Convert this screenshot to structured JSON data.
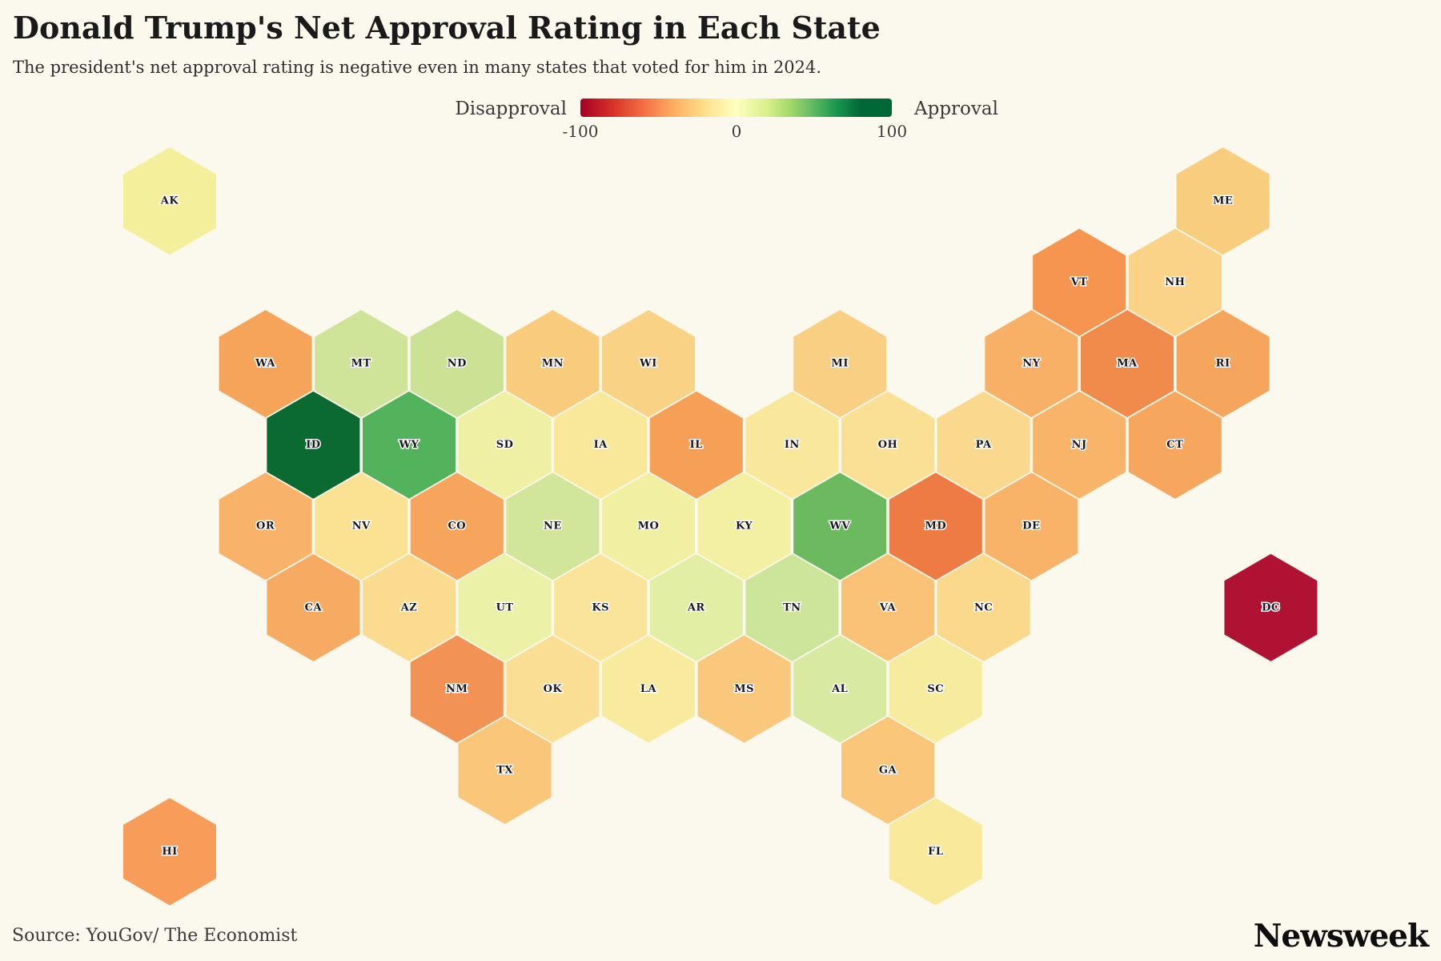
{
  "header": {
    "title": "Donald Trump's Net Approval Rating in Each State",
    "subtitle": "The president's net approval rating is negative even in many states that voted for him in 2024."
  },
  "legend": {
    "left_label": "Disapproval",
    "right_label": "Approval",
    "tick_min": "-100",
    "tick_mid": "0",
    "tick_max": "100",
    "gradient_stops": [
      "#a50026 0%",
      "#d73027 10%",
      "#f46d43 20%",
      "#fdae61 30%",
      "#fee08b 40%",
      "#ffffbf 50%",
      "#d9ef8b 60%",
      "#a6d96a 67%",
      "#66bd63 74%",
      "#1a9850 82%",
      "#006837 90%",
      "#006837 100%"
    ]
  },
  "footer": {
    "source": "Source: YouGov/ The Economist",
    "brand": "Newsweek"
  },
  "chart_data": {
    "type": "heatmap",
    "subtype": "us-state-hexbin-choropleth",
    "title": "Donald Trump's Net Approval Rating in Each State",
    "encoding": "net approval encoded by hexagon color on a -100 (disapproval, red) to +100 (approval, green) diverging scale; no numeric values printed on tiles",
    "color_scale": {
      "scheme": "red-yellow-green",
      "domain": [
        -100,
        100
      ],
      "min_label": "Disapproval",
      "max_label": "Approval",
      "background": "#FBF8ED",
      "dc_extreme_color": "#B01233",
      "id_extreme_color": "#0A6A31"
    },
    "states": [
      {
        "abbr": "AK",
        "row": 0,
        "col": 0,
        "color": "#F3EF9B"
      },
      {
        "abbr": "ME",
        "row": 0,
        "col": 11,
        "color": "#F8CE7E"
      },
      {
        "abbr": "VT",
        "row": 1,
        "col": 9,
        "color": "#F5954F"
      },
      {
        "abbr": "NH",
        "row": 1,
        "col": 10,
        "color": "#FAD288"
      },
      {
        "abbr": "WA",
        "row": 2,
        "col": 1,
        "color": "#F7A45B"
      },
      {
        "abbr": "MT",
        "row": 2,
        "col": 2,
        "color": "#CFE499"
      },
      {
        "abbr": "ND",
        "row": 2,
        "col": 3,
        "color": "#CBE295"
      },
      {
        "abbr": "MN",
        "row": 2,
        "col": 4,
        "color": "#F9CB7D"
      },
      {
        "abbr": "WI",
        "row": 2,
        "col": 5,
        "color": "#FAD286"
      },
      {
        "abbr": "MI",
        "row": 2,
        "col": 7,
        "color": "#F9CF84"
      },
      {
        "abbr": "NY",
        "row": 2,
        "col": 9,
        "color": "#F8B066"
      },
      {
        "abbr": "MA",
        "row": 2,
        "col": 10,
        "color": "#F08B4B"
      },
      {
        "abbr": "RI",
        "row": 2,
        "col": 11,
        "color": "#F6A55D"
      },
      {
        "abbr": "ID",
        "row": 3,
        "col": 1,
        "color": "#0A6A31"
      },
      {
        "abbr": "WY",
        "row": 3,
        "col": 2,
        "color": "#53B25C"
      },
      {
        "abbr": "SD",
        "row": 3,
        "col": 3,
        "color": "#EFF0A4"
      },
      {
        "abbr": "IA",
        "row": 3,
        "col": 4,
        "color": "#F9E79A"
      },
      {
        "abbr": "IL",
        "row": 3,
        "col": 5,
        "color": "#F6A057"
      },
      {
        "abbr": "IN",
        "row": 3,
        "col": 6,
        "color": "#F9E89C"
      },
      {
        "abbr": "OH",
        "row": 3,
        "col": 7,
        "color": "#FAE095"
      },
      {
        "abbr": "PA",
        "row": 3,
        "col": 8,
        "color": "#FAD88E"
      },
      {
        "abbr": "NJ",
        "row": 3,
        "col": 9,
        "color": "#F8B468"
      },
      {
        "abbr": "CT",
        "row": 3,
        "col": 10,
        "color": "#F7A65E"
      },
      {
        "abbr": "OR",
        "row": 4,
        "col": 1,
        "color": "#F8B269"
      },
      {
        "abbr": "NV",
        "row": 4,
        "col": 2,
        "color": "#FAE292"
      },
      {
        "abbr": "CO",
        "row": 4,
        "col": 3,
        "color": "#F7A45C"
      },
      {
        "abbr": "NE",
        "row": 4,
        "col": 4,
        "color": "#D1E59B"
      },
      {
        "abbr": "MO",
        "row": 4,
        "col": 5,
        "color": "#F1F0A2"
      },
      {
        "abbr": "KY",
        "row": 4,
        "col": 6,
        "color": "#F3F0A4"
      },
      {
        "abbr": "WV",
        "row": 4,
        "col": 7,
        "color": "#6CBA5F"
      },
      {
        "abbr": "MD",
        "row": 4,
        "col": 8,
        "color": "#EE7B43"
      },
      {
        "abbr": "DE",
        "row": 4,
        "col": 9,
        "color": "#F8B368"
      },
      {
        "abbr": "CA",
        "row": 5,
        "col": 1,
        "color": "#F7AB62"
      },
      {
        "abbr": "AZ",
        "row": 5,
        "col": 2,
        "color": "#FADB90"
      },
      {
        "abbr": "UT",
        "row": 5,
        "col": 3,
        "color": "#ECF1A8"
      },
      {
        "abbr": "KS",
        "row": 5,
        "col": 4,
        "color": "#F9E499"
      },
      {
        "abbr": "AR",
        "row": 5,
        "col": 5,
        "color": "#E1EEA3"
      },
      {
        "abbr": "TN",
        "row": 5,
        "col": 6,
        "color": "#CDE49B"
      },
      {
        "abbr": "VA",
        "row": 5,
        "col": 7,
        "color": "#F9C276"
      },
      {
        "abbr": "NC",
        "row": 5,
        "col": 8,
        "color": "#FAD88C"
      },
      {
        "abbr": "DC",
        "row": 5,
        "col": 11,
        "color": "#B01233"
      },
      {
        "abbr": "NM",
        "row": 6,
        "col": 3,
        "color": "#F29254"
      },
      {
        "abbr": "OK",
        "row": 6,
        "col": 4,
        "color": "#FADE94"
      },
      {
        "abbr": "LA",
        "row": 6,
        "col": 5,
        "color": "#F9EB9D"
      },
      {
        "abbr": "MS",
        "row": 6,
        "col": 6,
        "color": "#F9C87D"
      },
      {
        "abbr": "AL",
        "row": 6,
        "col": 7,
        "color": "#D8EAA1"
      },
      {
        "abbr": "SC",
        "row": 6,
        "col": 8,
        "color": "#F7EB9E"
      },
      {
        "abbr": "TX",
        "row": 7,
        "col": 3,
        "color": "#F9C67A"
      },
      {
        "abbr": "GA",
        "row": 7,
        "col": 7,
        "color": "#F9C67A"
      },
      {
        "abbr": "HI",
        "row": 8,
        "col": 0,
        "color": "#F79C59"
      },
      {
        "abbr": "FL",
        "row": 8,
        "col": 8,
        "color": "#F9E99B"
      }
    ],
    "layout_hints": {
      "legend_position": "top-center",
      "grid": "pointy-top hex grid, 9 rows"
    }
  }
}
